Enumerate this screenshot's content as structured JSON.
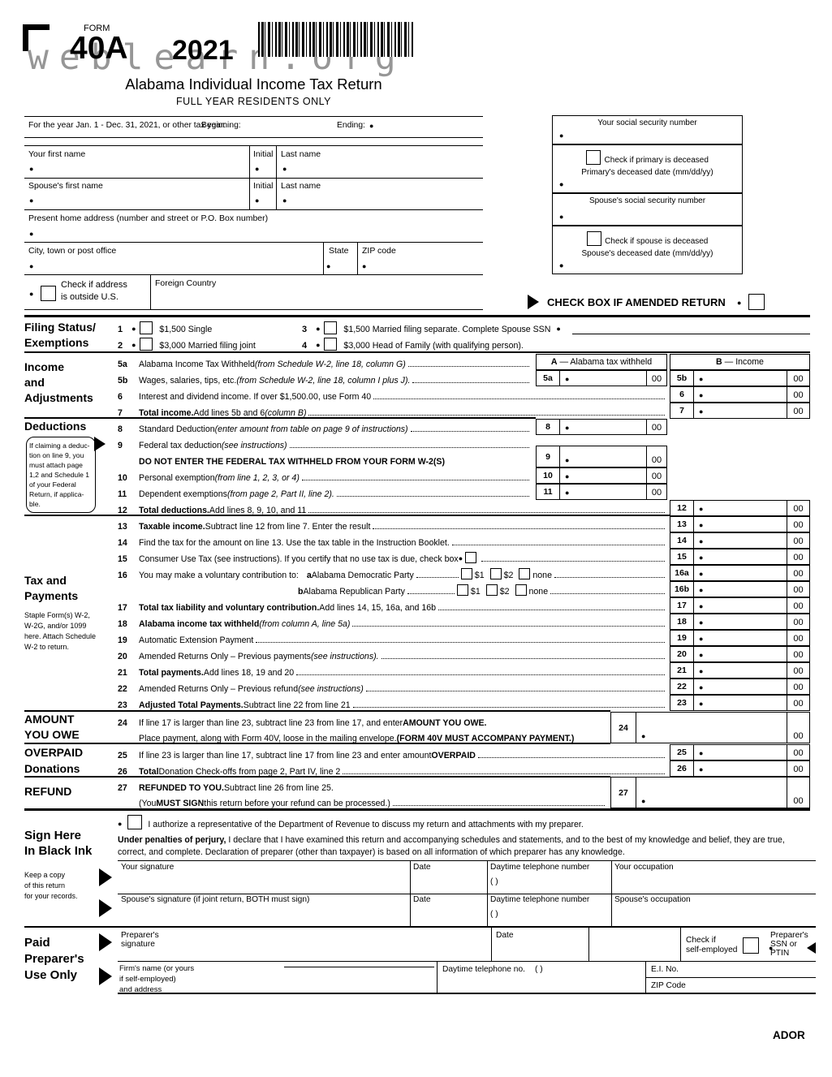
{
  "header": {
    "form_label": "FORM",
    "form_number": "40A",
    "year": "2021",
    "watermark": "weblearn.org",
    "title": "Alabama Individual Income Tax Return",
    "subtitle": "FULL YEAR RESIDENTS ONLY"
  },
  "taxpayer": {
    "year_line": "For the year Jan. 1 - Dec. 31, 2021, or other tax year:",
    "beginning": "Beginning:",
    "ending": "Ending:",
    "first_name": "Your first name",
    "initial": "Initial",
    "last_name": "Last name",
    "spouse_first_name": "Spouse's first name",
    "address": "Present home address (number and street or P.O. Box number)",
    "city": "City, town or post office",
    "state": "State",
    "zip": "ZIP code",
    "outside_us_1": "Check if address",
    "outside_us_2": "is outside U.S.",
    "foreign_country": "Foreign Country"
  },
  "ssn_block": {
    "your_ssn": "Your social security number",
    "primary_deceased": "Check if primary is deceased",
    "primary_date": "Primary's deceased date (mm/dd/yy)",
    "spouse_ssn": "Spouse's social security number",
    "spouse_deceased": "Check if spouse is deceased",
    "spouse_date": "Spouse's deceased date (mm/dd/yy)"
  },
  "amended_label": "CHECK BOX IF AMENDED RETURN",
  "filing": {
    "label1": "Filing Status/",
    "label2": "Exemptions",
    "item1_num": "1",
    "item1": "$1,500 Single",
    "item2_num": "2",
    "item2": "$3,000 Married filing joint",
    "item3_num": "3",
    "item3": "$1,500 Married filing separate. Complete Spouse SSN",
    "item4_num": "4",
    "item4": "$3,000 Head of Family (with qualifying person)."
  },
  "side_labels": {
    "income1": "Income",
    "income2": "and",
    "income3": "Adjustments",
    "deductions": "Deductions",
    "deductions_note": "If claiming a deduc-\ntion on line 9, you\nmust attach page\n1,2 and Schedule 1\nof your Federal\nReturn, if applica-\nble.",
    "tax1": "Tax and",
    "tax2": "Payments",
    "staple_note": "Staple Form(s) W-2,\nW-2G, and/or 1099\nhere. Attach Schedule\nW-2 to return.",
    "amount1": "AMOUNT",
    "amount2": "YOU OWE",
    "overpaid": "OVERPAID",
    "donations": "Donations",
    "refund": "REFUND",
    "sign1": "Sign Here",
    "sign2": "In Black Ink",
    "keep_copy": "Keep a copy\nof this return\nfor your records.",
    "paid1": "Paid",
    "paid2": "Preparer's",
    "paid3": "Use Only"
  },
  "columns": {
    "a_letter": "A",
    "a_text": "— Alabama tax withheld",
    "b_letter": "B",
    "b_text": "— Income",
    "cents": "00"
  },
  "lines": {
    "5a": {
      "num": "5a",
      "parts": [
        [
          "t",
          "Alabama Income Tax Withheld "
        ],
        [
          "i",
          "(from Schedule W-2, line 18, column G)"
        ],
        [
          "t",
          " "
        ],
        [
          "dots",
          0
        ]
      ]
    },
    "5b": {
      "num": "5b",
      "parts": [
        [
          "t",
          "Wages, salaries, tips, etc. "
        ],
        [
          "i",
          "(from Schedule W-2, line 18, column I plus J)."
        ],
        [
          "dots",
          0
        ]
      ]
    },
    "6": {
      "num": "6",
      "parts": [
        [
          "t",
          "Interest and dividend income. If over $1,500.00, use Form 40 "
        ],
        [
          "dots",
          0
        ]
      ]
    },
    "7": {
      "num": "7",
      "parts": [
        [
          "b",
          "Total income."
        ],
        [
          "t",
          " Add lines 5b and 6 "
        ],
        [
          "i",
          "(column B)"
        ],
        [
          "t",
          " "
        ],
        [
          "dots",
          0
        ]
      ]
    },
    "8": {
      "num": "8",
      "parts": [
        [
          "t",
          "Standard Deduction "
        ],
        [
          "i",
          "(enter amount from table on page 9 of instructions)"
        ],
        [
          "dots",
          0
        ]
      ]
    },
    "9": {
      "num": "9",
      "parts": [
        [
          "t",
          "Federal tax deduction "
        ],
        [
          "i",
          "(see instructions)"
        ],
        [
          "dots",
          0
        ]
      ]
    },
    "9b": {
      "num": "",
      "parts": [
        [
          "b",
          "DO NOT ENTER THE FEDERAL TAX WITHHELD FROM YOUR FORM W-2(S)"
        ]
      ]
    },
    "10": {
      "num": "10",
      "parts": [
        [
          "t",
          "Personal exemption "
        ],
        [
          "i",
          "(from line 1, 2, 3, or 4)"
        ],
        [
          "t",
          " "
        ],
        [
          "dots",
          0
        ]
      ]
    },
    "11": {
      "num": "11",
      "parts": [
        [
          "t",
          "Dependent exemptions "
        ],
        [
          "i",
          "(from page 2, Part II, line 2)."
        ],
        [
          "dots",
          0
        ]
      ]
    },
    "12": {
      "num": "12",
      "parts": [
        [
          "b",
          "Total deductions."
        ],
        [
          "t",
          " Add lines 8, 9, 10, and 11 "
        ],
        [
          "dots",
          0
        ]
      ]
    },
    "13": {
      "num": "13",
      "parts": [
        [
          "b",
          "Taxable income."
        ],
        [
          "t",
          " Subtract line 12 from line 7. Enter the result"
        ],
        [
          "dots",
          0
        ]
      ]
    },
    "14": {
      "num": "14",
      "parts": [
        [
          "t",
          "Find the tax for the amount on line 13. Use the tax table in the Instruction Booklet."
        ],
        [
          "dots",
          0
        ]
      ]
    },
    "15": {
      "num": "15",
      "parts": [
        [
          "t",
          "Consumer Use Tax (see instructions). If you certify that no use tax is due, check box "
        ],
        [
          "bul",
          0
        ],
        [
          "cb",
          0
        ],
        [
          "dots",
          0
        ]
      ]
    },
    "16a": {
      "num": "16",
      "parts": [
        [
          "t",
          "You may make a voluntary contribution to:"
        ],
        [
          "gap",
          10
        ],
        [
          "b",
          "a"
        ],
        [
          "t",
          " Alabama Democratic Party "
        ],
        [
          "dw",
          52
        ],
        [
          "cb",
          0
        ],
        [
          "t",
          "$1"
        ],
        [
          "gap",
          7
        ],
        [
          "cb",
          0
        ],
        [
          "t",
          "$2"
        ],
        [
          "gap",
          7
        ],
        [
          "cb",
          0
        ],
        [
          "t",
          "none "
        ],
        [
          "dots",
          0
        ]
      ]
    },
    "16b": {
      "num": "",
      "indent": 196,
      "parts": [
        [
          "b",
          "b"
        ],
        [
          "t",
          " Alabama Republican Party"
        ],
        [
          "dw",
          58
        ],
        [
          "cb",
          0
        ],
        [
          "t",
          "$1"
        ],
        [
          "gap",
          7
        ],
        [
          "cb",
          0
        ],
        [
          "t",
          "$2"
        ],
        [
          "gap",
          7
        ],
        [
          "cb",
          0
        ],
        [
          "t",
          "none "
        ],
        [
          "dots",
          0
        ]
      ]
    },
    "17": {
      "num": "17",
      "parts": [
        [
          "b",
          "Total tax liability and voluntary contribution."
        ],
        [
          "t",
          " Add lines 14, 15, 16a, and 16b "
        ],
        [
          "dots",
          0
        ]
      ]
    },
    "18": {
      "num": "18",
      "parts": [
        [
          "b",
          "Alabama income tax withheld "
        ],
        [
          "i",
          "(from column A, line 5a)"
        ],
        [
          "t",
          " "
        ],
        [
          "dots",
          0
        ]
      ]
    },
    "19": {
      "num": "19",
      "parts": [
        [
          "t",
          "Automatic Extension Payment"
        ],
        [
          "dots",
          0
        ]
      ]
    },
    "20": {
      "num": "20",
      "parts": [
        [
          "t",
          "Amended Returns Only – Previous payments "
        ],
        [
          "i",
          "(see instructions)."
        ],
        [
          "dots",
          0
        ]
      ]
    },
    "21": {
      "num": "21",
      "parts": [
        [
          "b",
          "Total payments."
        ],
        [
          "t",
          " Add lines 18, 19 and 20 "
        ],
        [
          "dots",
          0
        ]
      ]
    },
    "22": {
      "num": "22",
      "parts": [
        [
          "t",
          "Amended Returns Only – Previous refund "
        ],
        [
          "i",
          "(see instructions)"
        ],
        [
          "t",
          " "
        ],
        [
          "dots",
          0
        ]
      ]
    },
    "23": {
      "num": "23",
      "parts": [
        [
          "b",
          "Adjusted Total Payments."
        ],
        [
          "t",
          " Subtract line 22 from line 21 "
        ],
        [
          "dots",
          0
        ]
      ]
    },
    "24a": {
      "num": "24",
      "parts": [
        [
          "t",
          "If line 17 is larger than line 23, subtract line 23 from line 17, and enter "
        ],
        [
          "b",
          "AMOUNT YOU OWE."
        ]
      ]
    },
    "24b": {
      "num": "",
      "parts": [
        [
          "t",
          "Place payment, along with Form 40V, loose in the mailing envelope. "
        ],
        [
          "b",
          "(FORM 40V MUST ACCOMPANY PAYMENT.)"
        ]
      ]
    },
    "25": {
      "num": "25",
      "parts": [
        [
          "t",
          "If line 23 is larger than line 17, subtract line 17 from line 23 and enter amount "
        ],
        [
          "b",
          "OVERPAID"
        ],
        [
          "t",
          " "
        ],
        [
          "dots",
          0
        ]
      ]
    },
    "26": {
      "num": "26",
      "parts": [
        [
          "b",
          "Total"
        ],
        [
          "t",
          " Donation Check-offs from page 2, Part IV, line 2"
        ],
        [
          "dots",
          0
        ]
      ]
    },
    "27a": {
      "num": "27",
      "parts": [
        [
          "b",
          "REFUNDED TO YOU."
        ],
        [
          "t",
          " Subtract line 26 from line 25."
        ]
      ]
    },
    "27b": {
      "num": "",
      "parts": [
        [
          "t",
          "(You "
        ],
        [
          "b",
          "MUST SIGN"
        ],
        [
          "t",
          " this return before your refund can be processed.) "
        ],
        [
          "dots",
          0
        ]
      ]
    }
  },
  "sign": {
    "authorize": "I authorize a representative of the Department of Revenue to discuss my return and attachments with my preparer.",
    "perjury_bold": "Under penalties of perjury,",
    "perjury_1": " I declare that I have examined this return and accompanying schedules and statements, and to the best of my knowledge and belief, they are",
    "perjury_2": "true, correct, and complete. Declaration of preparer (other than taxpayer) is based on all information of which preparer has any knowledge.",
    "your_signature": "Your signature",
    "date": "Date",
    "daytime_phone": "Daytime telephone number",
    "phone_parens": "(          )",
    "your_occupation": "Your occupation",
    "spouse_signature": "Spouse's signature (if joint return, BOTH must sign)",
    "spouse_occupation": "Spouse's occupation"
  },
  "preparer": {
    "signature_1": "Preparer's",
    "signature_2": "signature",
    "date": "Date",
    "check_self_1": "Check if",
    "check_self_2": "self-employed",
    "ssn_ptin": "Preparer's SSN or PTIN",
    "firm": "Firm's name (or yours\nif self-employed)\nand address",
    "daytime_no": "Daytime telephone no.",
    "phone_parens": "(          )",
    "ei_no": "E.I. No.",
    "zip": "ZIP Code"
  },
  "footer": {
    "ador": "ADOR"
  }
}
